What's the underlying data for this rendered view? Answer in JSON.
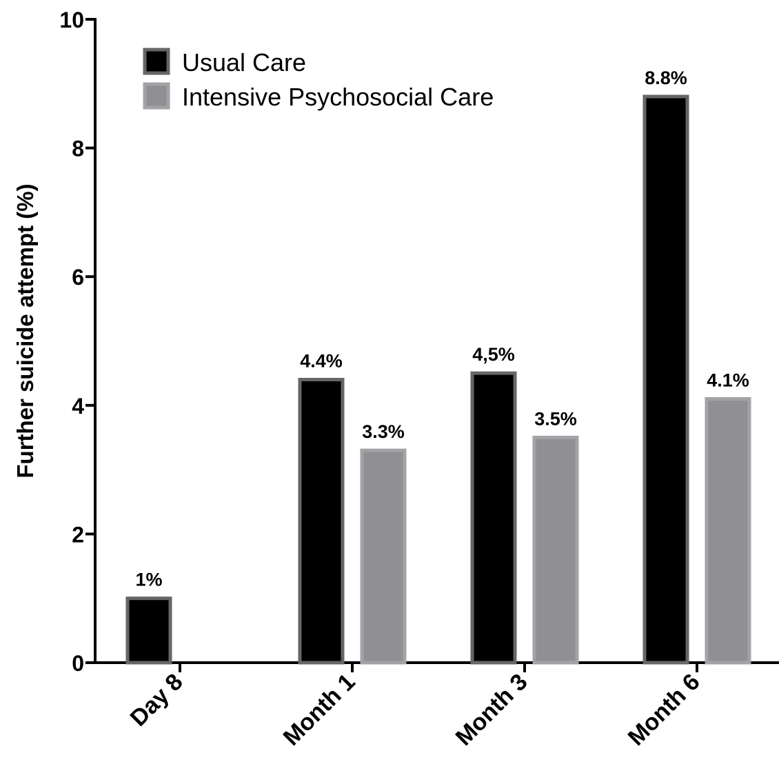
{
  "chart_data": {
    "type": "bar",
    "ylabel": "Further suicide attempt (%)",
    "xlabel": "",
    "ylim": [
      0,
      10
    ],
    "yticks": [
      0,
      2,
      4,
      6,
      8,
      10
    ],
    "categories": [
      "Day 8",
      "Month 1",
      "Month 3",
      "Month 6"
    ],
    "series": [
      {
        "name": "Usual Care",
        "color": "#000000",
        "border": "#666666",
        "values": [
          1,
          4.4,
          4.5,
          8.8
        ],
        "labels": [
          "1%",
          "4.4%",
          "4,5%",
          "8.8%"
        ]
      },
      {
        "name": "Intensive Psychosocial Care",
        "color": "#909094",
        "border": "#a3a3a7",
        "values": [
          null,
          3.3,
          3.5,
          4.1
        ],
        "labels": [
          null,
          "3.3%",
          "3.5%",
          "4.1%"
        ]
      }
    ],
    "legend_position": "top-left",
    "grid": false
  }
}
